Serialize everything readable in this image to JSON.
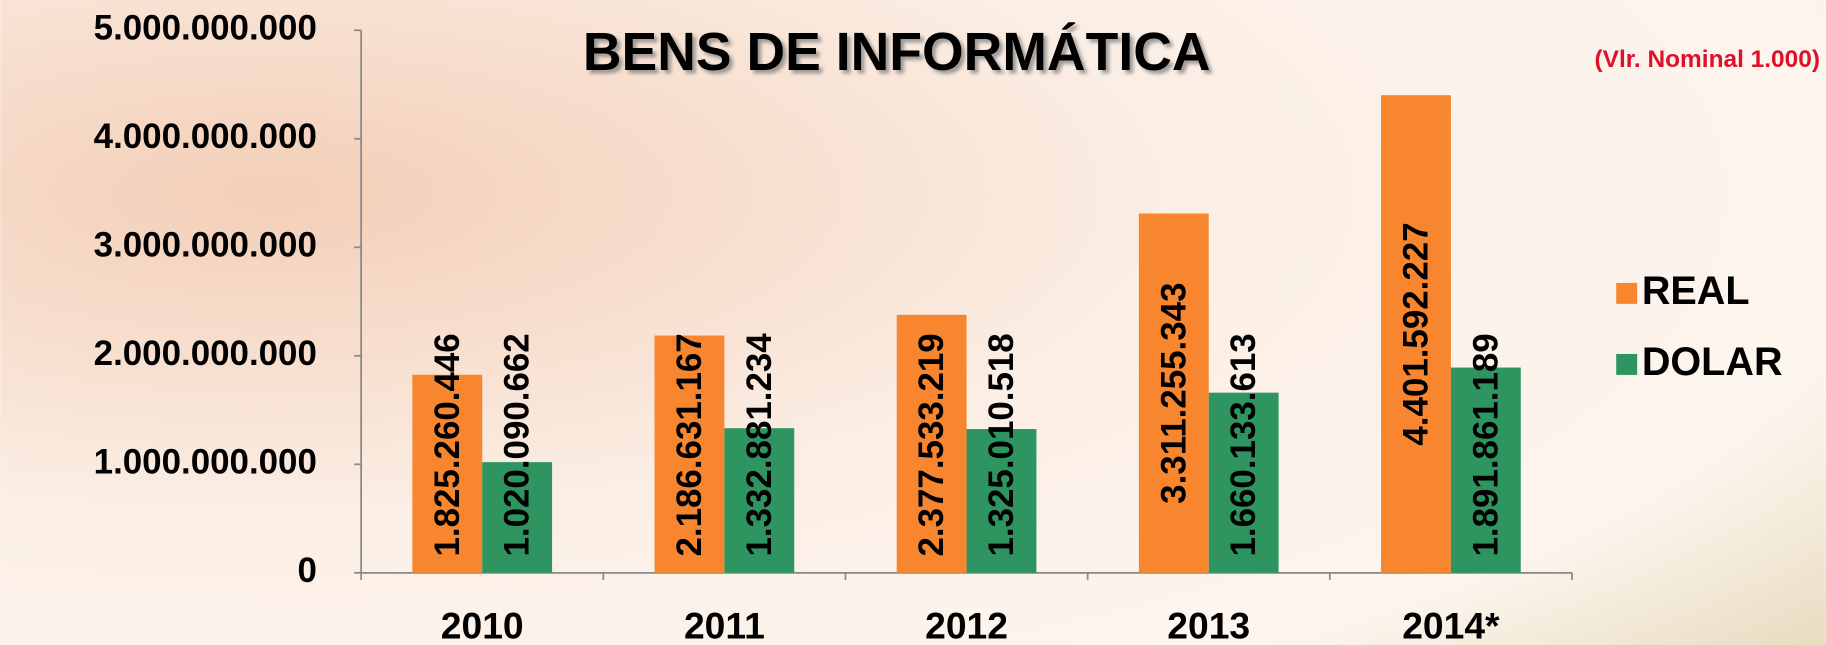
{
  "chart_data": {
    "type": "bar",
    "title": "BENS DE INFORMÁTICA",
    "subtitle": "(Vlr. Nominal 1.000)",
    "categories": [
      "2010",
      "2011",
      "2012",
      "2013",
      "2014*"
    ],
    "series": [
      {
        "name": "REAL",
        "color": "#f7862f",
        "values": [
          1825260446,
          2186631167,
          2377533219,
          3311255343,
          4401592227
        ],
        "value_labels": [
          "1.825.260.446",
          "2.186.631.167",
          "2.377.533.219",
          "3.311.255.343",
          "4.401.592.227"
        ]
      },
      {
        "name": "DOLAR",
        "color": "#2f9560",
        "values": [
          1020090662,
          1332881234,
          1325010518,
          1660133613,
          1891861189
        ],
        "value_labels": [
          "1.020.090.662",
          "1.332.881.234",
          "1.325.010.518",
          "1.660.133.613",
          "1.891.861.189"
        ]
      }
    ],
    "ylim": [
      0,
      5000000000
    ],
    "yticks": [
      0,
      {
        "value": 1000000000,
        "label": "1.000.000.000"
      },
      {
        "value": 2000000000,
        "label": "2.000.000.000"
      },
      {
        "value": 3000000000,
        "label": "3.000.000.000"
      },
      {
        "value": 4000000000,
        "label": "4.000.000.000"
      },
      {
        "value": 5000000000,
        "label": "5.000.000.000"
      }
    ],
    "legend": "right"
  }
}
